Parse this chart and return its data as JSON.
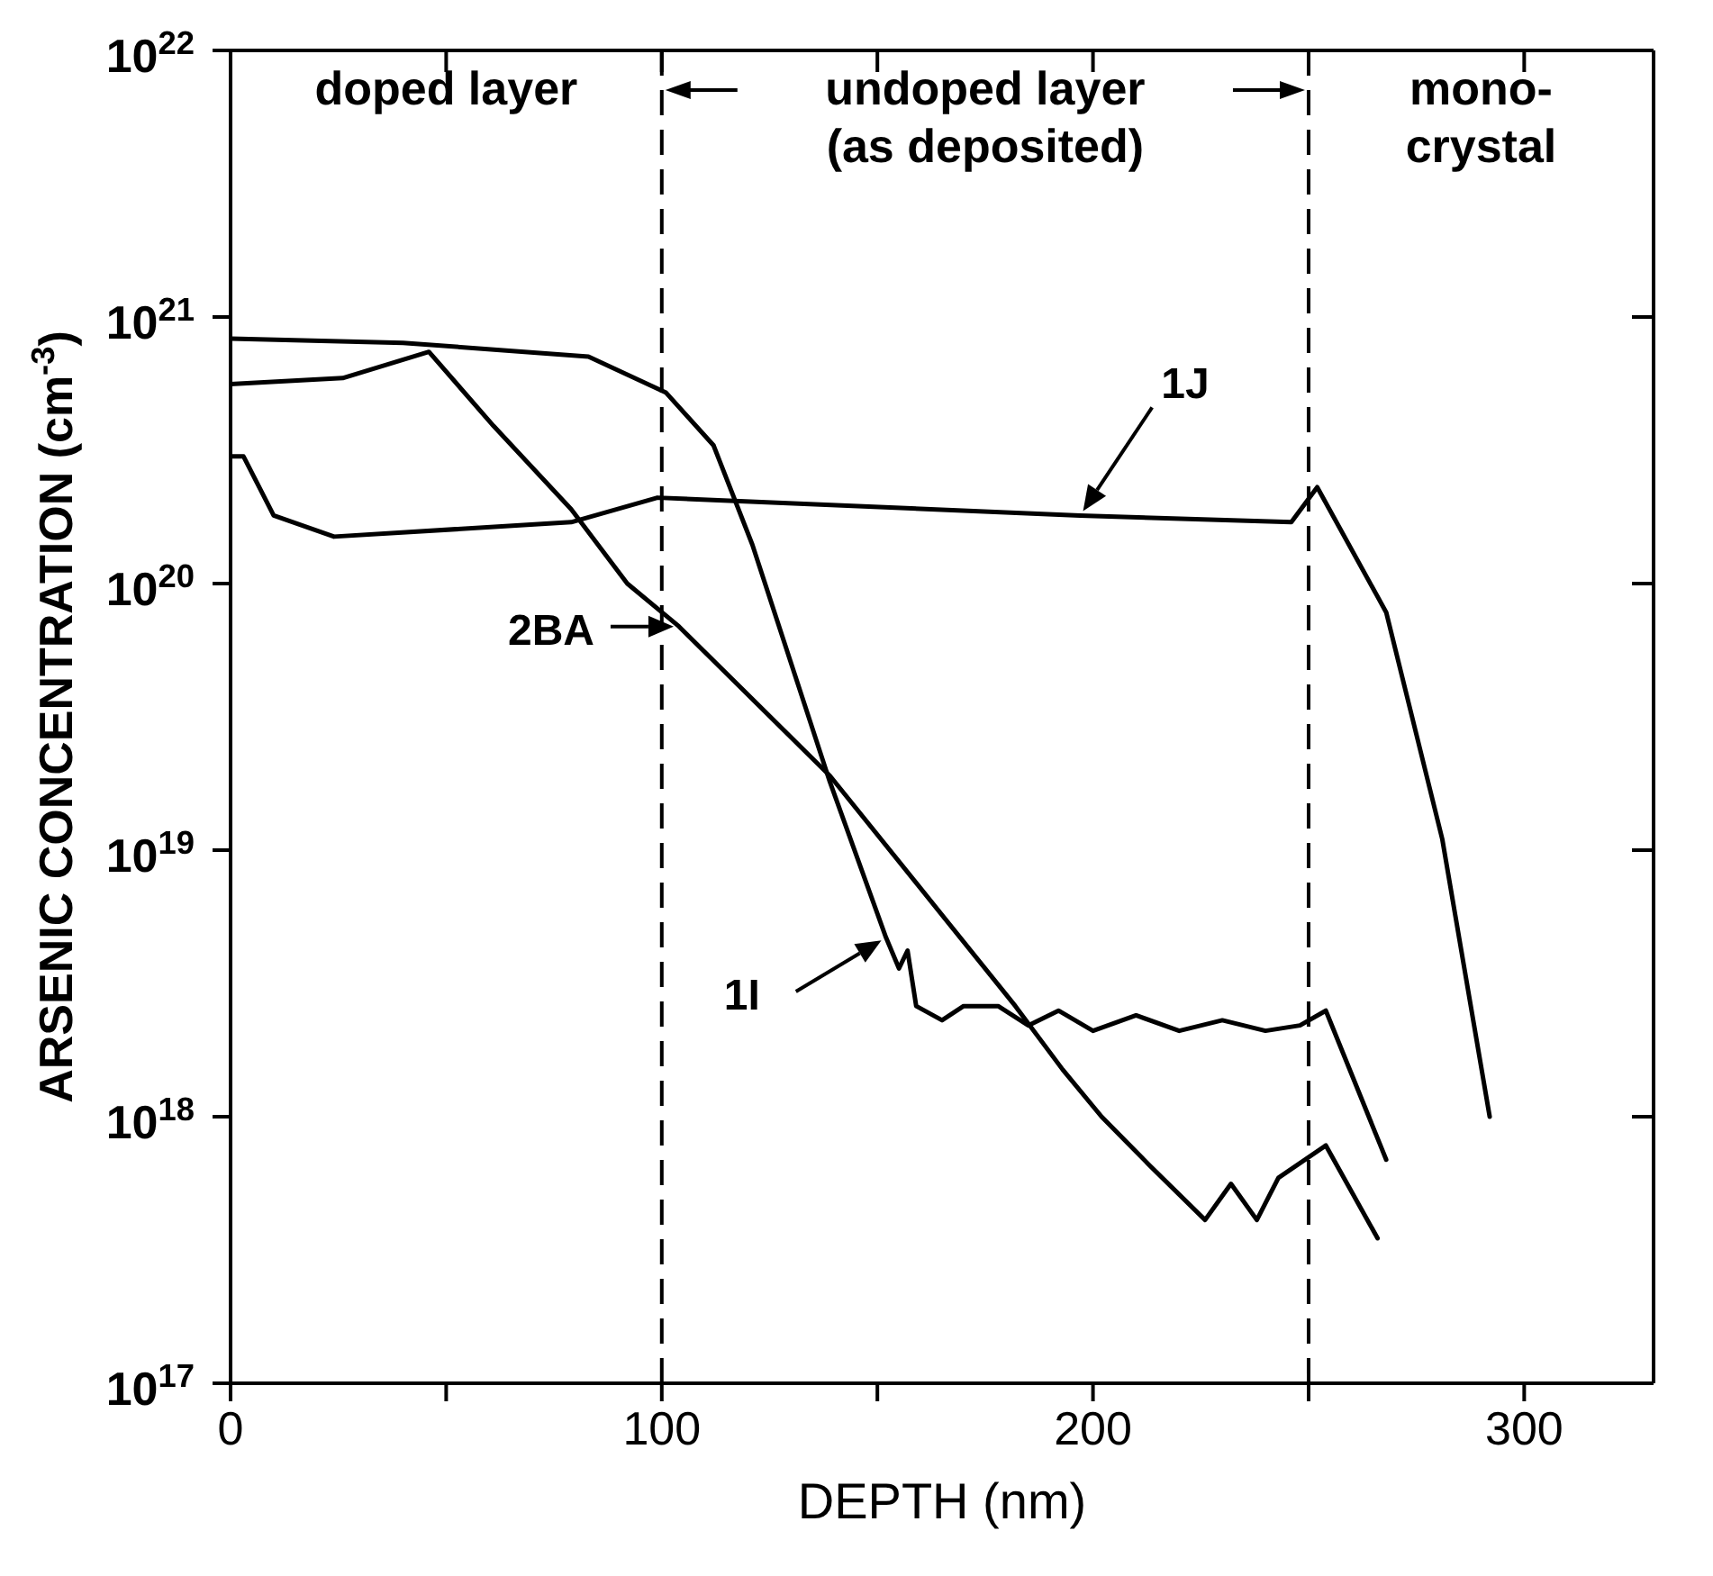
{
  "chart_data": {
    "type": "line",
    "xlabel": "DEPTH (nm)",
    "ylabel": "ARSENIC CONCENTRATION (cm$^{-3}$)",
    "xlim": [
      0,
      330
    ],
    "xticks": [
      0,
      {
        "value": 50,
        "label": null
      },
      100,
      {
        "value": 150,
        "label": null
      },
      200,
      {
        "value": 250,
        "label": null
      },
      300
    ],
    "ylim": [
      1e+17,
      1e+22
    ],
    "yticks": [
      {
        "value": 1e+17,
        "label": "10$^{17}$"
      },
      {
        "value": 1e+18,
        "label": "10$^{18}$"
      },
      {
        "value": 1e+19,
        "label": "10$^{19}$"
      },
      {
        "value": 1e+20,
        "label": "10$^{20}$"
      },
      {
        "value": 1e+21,
        "label": "10$^{21}$"
      },
      {
        "value": 1e+22,
        "label": "10$^{22}$"
      }
    ],
    "log": "y",
    "grid": false,
    "legend": "left",
    "marker": "none",
    "line_style": "solid",
    "series": [
      {
        "name": "1J",
        "color": "#000000",
        "x": [
          0,
          3,
          10,
          24,
          79,
          99,
          197,
          246,
          252,
          268,
          281,
          292
        ],
        "values": [
          3e+20,
          3e+20,
          1.8e+20,
          1.5e+20,
          1.7e+20,
          2.1e+20,
          1.8e+20,
          1.7e+20,
          2.3e+20,
          7.8e+19,
          1.1e+19,
          1e+18
        ]
      },
      {
        "name": "1I",
        "color": "#000000",
        "x": [
          0,
          40,
          83,
          101,
          112,
          121,
          139,
          152,
          155,
          157,
          159,
          165,
          170,
          178,
          185,
          192,
          200,
          210,
          220,
          230,
          240,
          248,
          254,
          268
        ],
        "values": [
          8.3e+20,
          8e+20,
          7.1e+20,
          5.2e+20,
          3.3e+20,
          1.4e+20,
          1.8e+19,
          4.7e+18,
          3.6e+18,
          4.2e+18,
          2.6e+18,
          2.3e+18,
          2.6e+18,
          2.6e+18,
          2.2e+18,
          2.5e+18,
          2.1e+18,
          2.4e+18,
          2.1e+18,
          2.3e+18,
          2.1e+18,
          2.2e+18,
          2.5e+18,
          6.9e+17
        ]
      },
      {
        "name": "2BA",
        "color": "#000000",
        "x": [
          0,
          26,
          46,
          61,
          79,
          92,
          104,
          139,
          182,
          193,
          202,
          213,
          226,
          232,
          238,
          243,
          254,
          266
        ],
        "values": [
          5.6e+20,
          5.9e+20,
          7.4e+20,
          3.9e+20,
          1.9e+20,
          1e+20,
          6.9e+19,
          1.9e+19,
          2.6e+18,
          1.5e+18,
          1e+18,
          6.6e+17,
          4.1e+17,
          5.6e+17,
          4.1e+17,
          5.9e+17,
          7.8e+17,
          3.5e+17
        ]
      }
    ],
    "ref_lines": [
      {
        "axis": "x",
        "value": 100,
        "line_style": "dashed"
      },
      {
        "axis": "x",
        "value": 250,
        "line_style": "dashed"
      }
    ],
    "annotations": [
      "doped layer",
      "undoped layer\n(as deposited)",
      "mono-\ncrystal"
    ]
  }
}
